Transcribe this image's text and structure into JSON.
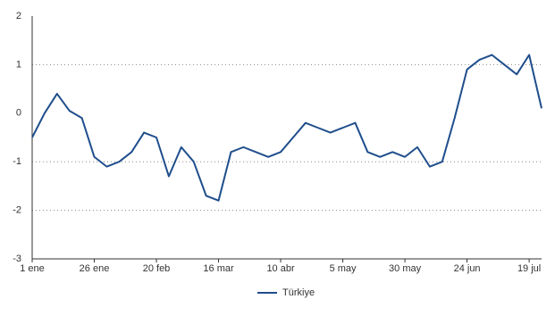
{
  "chart_data": {
    "type": "line",
    "categories": [
      "1 ene",
      null,
      null,
      null,
      null,
      "26 ene",
      null,
      null,
      null,
      null,
      "20 feb",
      null,
      null,
      null,
      null,
      "16 mar",
      null,
      null,
      null,
      null,
      "10 abr",
      null,
      null,
      null,
      null,
      "5 may",
      null,
      null,
      null,
      null,
      "30 may",
      null,
      null,
      null,
      null,
      "24 jun",
      null,
      null,
      null,
      null,
      "19 jul",
      null
    ],
    "series": [
      {
        "name": "Türkiye",
        "color": "#1f4e8c",
        "values": [
          -0.5,
          0.0,
          0.4,
          0.05,
          -0.1,
          -0.9,
          -1.1,
          -1.0,
          -0.8,
          -0.4,
          -0.5,
          -1.3,
          -0.7,
          -1.0,
          -1.7,
          -1.8,
          -0.8,
          -0.7,
          -0.8,
          -0.9,
          -0.8,
          -0.5,
          -0.2,
          -0.3,
          -0.4,
          -0.3,
          -0.2,
          -0.8,
          -0.9,
          -0.8,
          -0.9,
          -0.7,
          -1.1,
          -1.0,
          -0.1,
          0.9,
          1.1,
          1.2,
          1.0,
          0.8,
          1.2,
          0.1
        ]
      }
    ],
    "ylim": [
      -3,
      2
    ],
    "yticks": [
      -3,
      -2,
      -1,
      0,
      1,
      2
    ],
    "grid": true,
    "legend": "bottom"
  }
}
